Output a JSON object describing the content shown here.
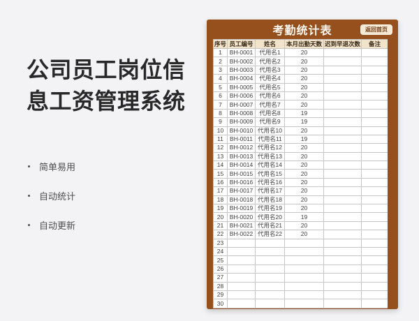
{
  "colors": {
    "page_bg": "#f3f3f5",
    "panel_brown": "#95501e",
    "header_tan": "#f2e3cb",
    "button_bg": "#f6ead6",
    "button_text": "#6f3c12",
    "grid_line": "#c6c6c6"
  },
  "promo": {
    "title_line1": "公司员工岗位信",
    "title_line2": "息工资管理系统",
    "bullets": [
      "简单易用",
      "自动统计",
      "自动更新"
    ]
  },
  "panel": {
    "title": "考勤统计表",
    "home_button_label": "返回首页"
  },
  "table": {
    "column_keys": [
      "no",
      "emp_id",
      "name",
      "days",
      "late_count",
      "note"
    ],
    "columns": [
      "序号",
      "员工编号",
      "姓名",
      "本月出勤天数",
      "迟到早退次数",
      "备注"
    ],
    "rows": [
      [
        "1",
        "BH-0001",
        "代用名1",
        "20",
        "",
        ""
      ],
      [
        "2",
        "BH-0002",
        "代用名2",
        "20",
        "",
        ""
      ],
      [
        "3",
        "BH-0003",
        "代用名3",
        "20",
        "",
        ""
      ],
      [
        "4",
        "BH-0004",
        "代用名4",
        "20",
        "",
        ""
      ],
      [
        "5",
        "BH-0005",
        "代用名5",
        "20",
        "",
        ""
      ],
      [
        "6",
        "BH-0006",
        "代用名6",
        "20",
        "",
        ""
      ],
      [
        "7",
        "BH-0007",
        "代用名7",
        "20",
        "",
        ""
      ],
      [
        "8",
        "BH-0008",
        "代用名8",
        "19",
        "",
        ""
      ],
      [
        "9",
        "BH-0009",
        "代用名9",
        "19",
        "",
        ""
      ],
      [
        "10",
        "BH-0010",
        "代用名10",
        "20",
        "",
        ""
      ],
      [
        "11",
        "BH-0011",
        "代用名11",
        "19",
        "",
        ""
      ],
      [
        "12",
        "BH-0012",
        "代用名12",
        "20",
        "",
        ""
      ],
      [
        "13",
        "BH-0013",
        "代用名13",
        "20",
        "",
        ""
      ],
      [
        "14",
        "BH-0014",
        "代用名14",
        "20",
        "",
        ""
      ],
      [
        "15",
        "BH-0015",
        "代用名15",
        "20",
        "",
        ""
      ],
      [
        "16",
        "BH-0016",
        "代用名16",
        "20",
        "",
        ""
      ],
      [
        "17",
        "BH-0017",
        "代用名17",
        "20",
        "",
        ""
      ],
      [
        "18",
        "BH-0018",
        "代用名18",
        "20",
        "",
        ""
      ],
      [
        "19",
        "BH-0019",
        "代用名19",
        "20",
        "",
        ""
      ],
      [
        "20",
        "BH-0020",
        "代用名20",
        "19",
        "",
        ""
      ],
      [
        "21",
        "BH-0021",
        "代用名21",
        "20",
        "",
        ""
      ],
      [
        "22",
        "BH-0022",
        "代用名22",
        "20",
        "",
        ""
      ],
      [
        "23",
        "",
        "",
        "",
        "",
        ""
      ],
      [
        "24",
        "",
        "",
        "",
        "",
        ""
      ],
      [
        "25",
        "",
        "",
        "",
        "",
        ""
      ],
      [
        "26",
        "",
        "",
        "",
        "",
        ""
      ],
      [
        "27",
        "",
        "",
        "",
        "",
        ""
      ],
      [
        "28",
        "",
        "",
        "",
        "",
        ""
      ],
      [
        "29",
        "",
        "",
        "",
        "",
        ""
      ],
      [
        "30",
        "",
        "",
        "",
        "",
        ""
      ]
    ]
  }
}
